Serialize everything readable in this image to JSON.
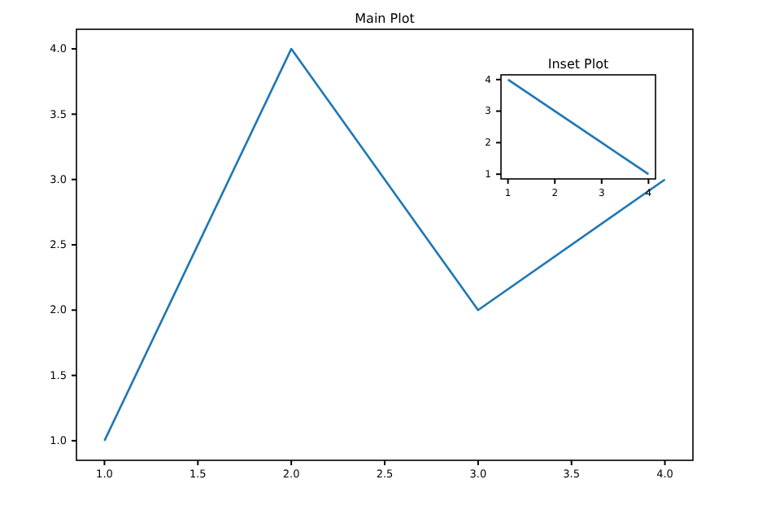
{
  "chart_data": [
    {
      "type": "line",
      "title": "Main Plot",
      "x": [
        1,
        2,
        3,
        4
      ],
      "values": [
        1,
        4,
        2,
        3
      ],
      "color": "#1f77b4",
      "xlim": [
        0.85,
        4.15
      ],
      "ylim": [
        0.85,
        4.15
      ],
      "xticks": [
        {
          "value": 1,
          "label": "1.0"
        },
        1.5,
        {
          "value": 2,
          "label": "2.0"
        },
        2.5,
        {
          "value": 3,
          "label": "3.0"
        },
        3.5,
        {
          "value": 4,
          "label": "4.0"
        }
      ],
      "yticks": [
        {
          "value": 1,
          "label": "1.0"
        },
        1.5,
        {
          "value": 2,
          "label": "2.0"
        },
        2.5,
        {
          "value": 3,
          "label": "3.0"
        },
        3.5,
        {
          "value": 4,
          "label": "4.0"
        }
      ],
      "grid": false
    },
    {
      "type": "line",
      "title": "Inset Plot",
      "x": [
        1,
        2,
        3,
        4
      ],
      "values": [
        4,
        3,
        2,
        1
      ],
      "color": "#1f77b4",
      "xlim": [
        0.85,
        4.15
      ],
      "ylim": [
        0.85,
        4.15
      ],
      "xticks": [
        1,
        2,
        3,
        4
      ],
      "yticks": [
        1,
        2,
        3,
        4
      ],
      "grid": false
    }
  ]
}
